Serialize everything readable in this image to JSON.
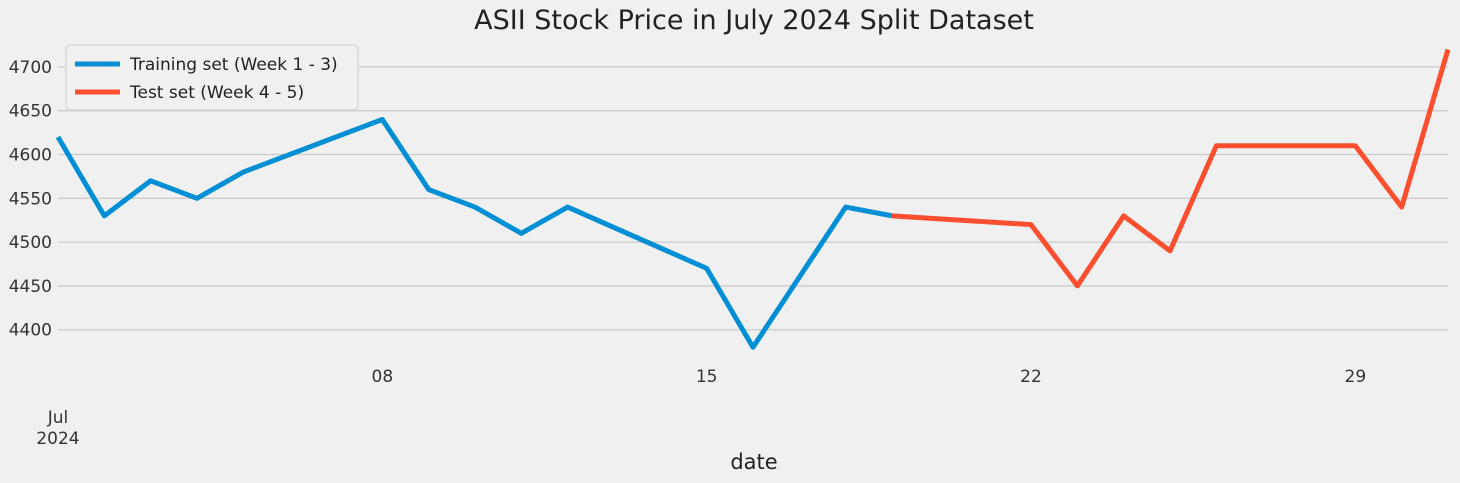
{
  "chart_data": {
    "type": "line",
    "title": "ASII Stock Price in July 2024 Split Dataset",
    "xlabel": "date",
    "ylabel": "",
    "x_type": "date",
    "xlim": [
      "2024-07-01",
      "2024-07-31"
    ],
    "ylim": [
      4370,
      4725
    ],
    "grid": "y",
    "legend_position": "top-left",
    "x_ticks": [
      {
        "date": "2024-07-01",
        "label": "Jul",
        "sublabel": "2024"
      },
      {
        "date": "2024-07-08",
        "label": "08"
      },
      {
        "date": "2024-07-15",
        "label": "15"
      },
      {
        "date": "2024-07-22",
        "label": "22"
      },
      {
        "date": "2024-07-29",
        "label": "29"
      }
    ],
    "y_ticks": [
      4400,
      4450,
      4500,
      4550,
      4600,
      4650,
      4700
    ],
    "series": [
      {
        "name": "Training set (Week 1 - 3)",
        "color": "#008fd5",
        "x": [
          "2024-07-01",
          "2024-07-02",
          "2024-07-03",
          "2024-07-04",
          "2024-07-05",
          "2024-07-08",
          "2024-07-09",
          "2024-07-10",
          "2024-07-11",
          "2024-07-12",
          "2024-07-15",
          "2024-07-16",
          "2024-07-18",
          "2024-07-19"
        ],
        "values": [
          4620,
          4530,
          4570,
          4550,
          4580,
          4640,
          4560,
          4540,
          4510,
          4540,
          4470,
          4380,
          4540,
          4530
        ]
      },
      {
        "name": "Test set (Week 4 - 5)",
        "color": "#fc4f30",
        "x": [
          "2024-07-19",
          "2024-07-22",
          "2024-07-23",
          "2024-07-24",
          "2024-07-25",
          "2024-07-26",
          "2024-07-29",
          "2024-07-30",
          "2024-07-31"
        ],
        "values": [
          4530,
          4520,
          4450,
          4530,
          4490,
          4610,
          4610,
          4540,
          4720
        ]
      }
    ]
  }
}
